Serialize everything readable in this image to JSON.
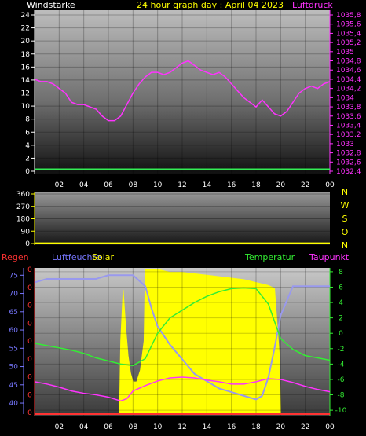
{
  "colors": {
    "background": "#000000",
    "white": "#ffffff",
    "yellow": "#ffff00",
    "magenta": "#ff33ff",
    "blue_axis": "#7777ff",
    "humidity": "#9999ee",
    "temperature": "#33ee33",
    "dewpoint": "#ff33ff",
    "rain": "#ff3333",
    "solar": "#ffff00",
    "wind": "#33ee55",
    "pressure": "#ff33ff"
  },
  "header": {
    "wind_label": "Windstärke",
    "title": "24 hour graph day : April 04 2023",
    "pressure_label": "Luftdruck"
  },
  "x_ticks": [
    "02",
    "04",
    "06",
    "08",
    "10",
    "12",
    "14",
    "16",
    "18",
    "20",
    "22",
    "00"
  ],
  "chart_data": [
    {
      "type": "line",
      "panel": "wind-pressure",
      "x_range_hours": [
        0,
        24
      ],
      "left_axis": {
        "label": "Windstärke",
        "ticks": [
          "24",
          "22",
          "20",
          "18",
          "16",
          "14",
          "12",
          "10",
          "8",
          "6",
          "4",
          "2",
          "0"
        ],
        "range": [
          0,
          24
        ]
      },
      "right_axis": {
        "label": "Luftdruck",
        "ticks": [
          "1035,8",
          "1035,6",
          "1035,4",
          "1035,2",
          "1035",
          "1034,8",
          "1034,6",
          "1034,4",
          "1034,2",
          "1034",
          "1033,8",
          "1033,6",
          "1033,4",
          "1033,2",
          "1033",
          "1032,8",
          "1032,6",
          "1032,4"
        ],
        "range": [
          1032.4,
          1035.8
        ]
      },
      "series": [
        {
          "name": "Windstärke",
          "axis": "left",
          "x": [
            0,
            24
          ],
          "values": [
            0.3,
            0.3
          ]
        },
        {
          "name": "Luftdruck",
          "axis": "right",
          "x": [
            0,
            0.5,
            1,
            1.5,
            2,
            2.5,
            3,
            3.5,
            4,
            4.5,
            5,
            5.5,
            6,
            6.5,
            7,
            7.5,
            8,
            8.5,
            9,
            9.5,
            10,
            10.5,
            11,
            11.5,
            12,
            12.5,
            13,
            13.5,
            14,
            14.5,
            15,
            15.5,
            16,
            16.5,
            17,
            17.5,
            18,
            18.5,
            19,
            19.5,
            20,
            20.5,
            21,
            21.5,
            22,
            22.5,
            23,
            23.5,
            24
          ],
          "values": [
            1034.4,
            1034.35,
            1034.35,
            1034.3,
            1034.2,
            1034.1,
            1033.9,
            1033.85,
            1033.85,
            1033.8,
            1033.75,
            1033.6,
            1033.5,
            1033.5,
            1033.6,
            1033.85,
            1034.1,
            1034.3,
            1034.45,
            1034.55,
            1034.55,
            1034.5,
            1034.55,
            1034.65,
            1034.75,
            1034.8,
            1034.7,
            1034.6,
            1034.55,
            1034.5,
            1034.55,
            1034.45,
            1034.3,
            1034.15,
            1034.0,
            1033.9,
            1033.8,
            1033.95,
            1033.8,
            1033.65,
            1033.6,
            1033.7,
            1033.9,
            1034.1,
            1034.2,
            1034.25,
            1034.2,
            1034.3,
            1034.35
          ]
        }
      ]
    },
    {
      "type": "line",
      "panel": "wind-direction",
      "x_range_hours": [
        0,
        24
      ],
      "left_axis": {
        "ticks": [
          "360",
          "270",
          "180",
          "90",
          "0"
        ],
        "range": [
          0,
          360
        ]
      },
      "right_labels": [
        "N",
        "W",
        "S",
        "O",
        "N"
      ],
      "series": [
        {
          "name": "Windrichtung",
          "x": [
            0,
            24
          ],
          "values": [
            2,
            2
          ]
        }
      ]
    },
    {
      "type": "line",
      "panel": "humidity-temperature",
      "x_range_hours": [
        0,
        24
      ],
      "legend": {
        "rain": "Regen",
        "humidity": "Luftfeuchte",
        "solar": "Solar",
        "temperature": "Temperatur",
        "dewpoint": "Taupunkt"
      },
      "left_axis": {
        "label": "Luftfeuchte",
        "ticks": [
          "75",
          "70",
          "65",
          "60",
          "55",
          "50",
          "45",
          "40"
        ],
        "range": [
          37,
          77
        ]
      },
      "rain_axis": {
        "label": "Regen",
        "ticks": [
          "0",
          "0",
          "0",
          "0",
          "0",
          "0",
          "0",
          "0",
          "0"
        ]
      },
      "right_axis": {
        "label": "Temperatur",
        "ticks": [
          "8",
          "6",
          "4",
          "2",
          "0",
          "-2",
          "-4",
          "-6",
          "-8",
          "-10"
        ],
        "range": [
          -10.5,
          8.5
        ]
      },
      "series": [
        {
          "name": "Luftfeuchte",
          "axis": "left",
          "x": [
            0,
            1,
            2,
            3,
            4,
            5,
            6,
            7,
            8,
            9,
            9.5,
            10,
            11,
            12,
            13,
            14,
            15,
            16,
            17,
            18,
            18.5,
            19,
            19.5,
            20,
            21,
            22,
            23,
            24
          ],
          "values": [
            73,
            74,
            74,
            74,
            74,
            74,
            75,
            75,
            75,
            72,
            66,
            61,
            56,
            52,
            48,
            46,
            44,
            43,
            42,
            41,
            42,
            47,
            55,
            64,
            72,
            72,
            72,
            72
          ]
        },
        {
          "name": "Temperatur",
          "axis": "right",
          "x": [
            0,
            1,
            2,
            3,
            4,
            5,
            6,
            7,
            8,
            9,
            10,
            11,
            12,
            13,
            14,
            15,
            16,
            17,
            18,
            19,
            20,
            21,
            22,
            23,
            24
          ],
          "values": [
            -1.3,
            -1.6,
            -1.9,
            -2.2,
            -2.6,
            -3.2,
            -3.6,
            -4.0,
            -4.2,
            -3.3,
            0.0,
            2.0,
            3.0,
            4.0,
            4.8,
            5.4,
            5.8,
            5.9,
            5.8,
            3.8,
            -0.7,
            -2.1,
            -2.9,
            -3.2,
            -3.5
          ]
        },
        {
          "name": "Taupunkt",
          "axis": "right",
          "x": [
            0,
            1,
            2,
            3,
            4,
            5,
            6,
            7,
            7.5,
            8,
            9,
            10,
            11,
            12,
            13,
            14,
            15,
            16,
            17,
            18,
            19,
            20,
            21,
            22,
            23,
            24
          ],
          "values": [
            -6.3,
            -6.6,
            -7.0,
            -7.5,
            -7.8,
            -8.0,
            -8.3,
            -8.8,
            -8.5,
            -7.5,
            -6.8,
            -6.2,
            -5.8,
            -5.7,
            -5.8,
            -6.1,
            -6.3,
            -6.6,
            -6.6,
            -6.3,
            -5.9,
            -6.0,
            -6.4,
            -6.9,
            -7.3,
            -7.6
          ]
        },
        {
          "name": "Solar",
          "axis": "fill",
          "x": [
            0,
            6.9,
            7.0,
            7.2,
            7.4,
            7.6,
            7.8,
            8.0,
            8.3,
            8.6,
            8.9,
            9.0,
            9.1,
            10,
            11,
            12,
            13,
            14,
            15,
            16,
            17,
            18,
            19,
            19.5,
            19.9,
            20.0,
            24
          ],
          "values": [
            0,
            0,
            0.5,
            0.85,
            0.6,
            0.4,
            0.28,
            0.22,
            0.22,
            0.3,
            0.5,
            0.99,
            0.99,
            0.99,
            0.97,
            0.97,
            0.96,
            0.95,
            0.94,
            0.93,
            0.92,
            0.9,
            0.88,
            0.86,
            0.4,
            0,
            0
          ]
        },
        {
          "name": "Regen",
          "axis": "rain",
          "x": [
            0,
            24
          ],
          "values": [
            0,
            0
          ]
        }
      ]
    }
  ]
}
